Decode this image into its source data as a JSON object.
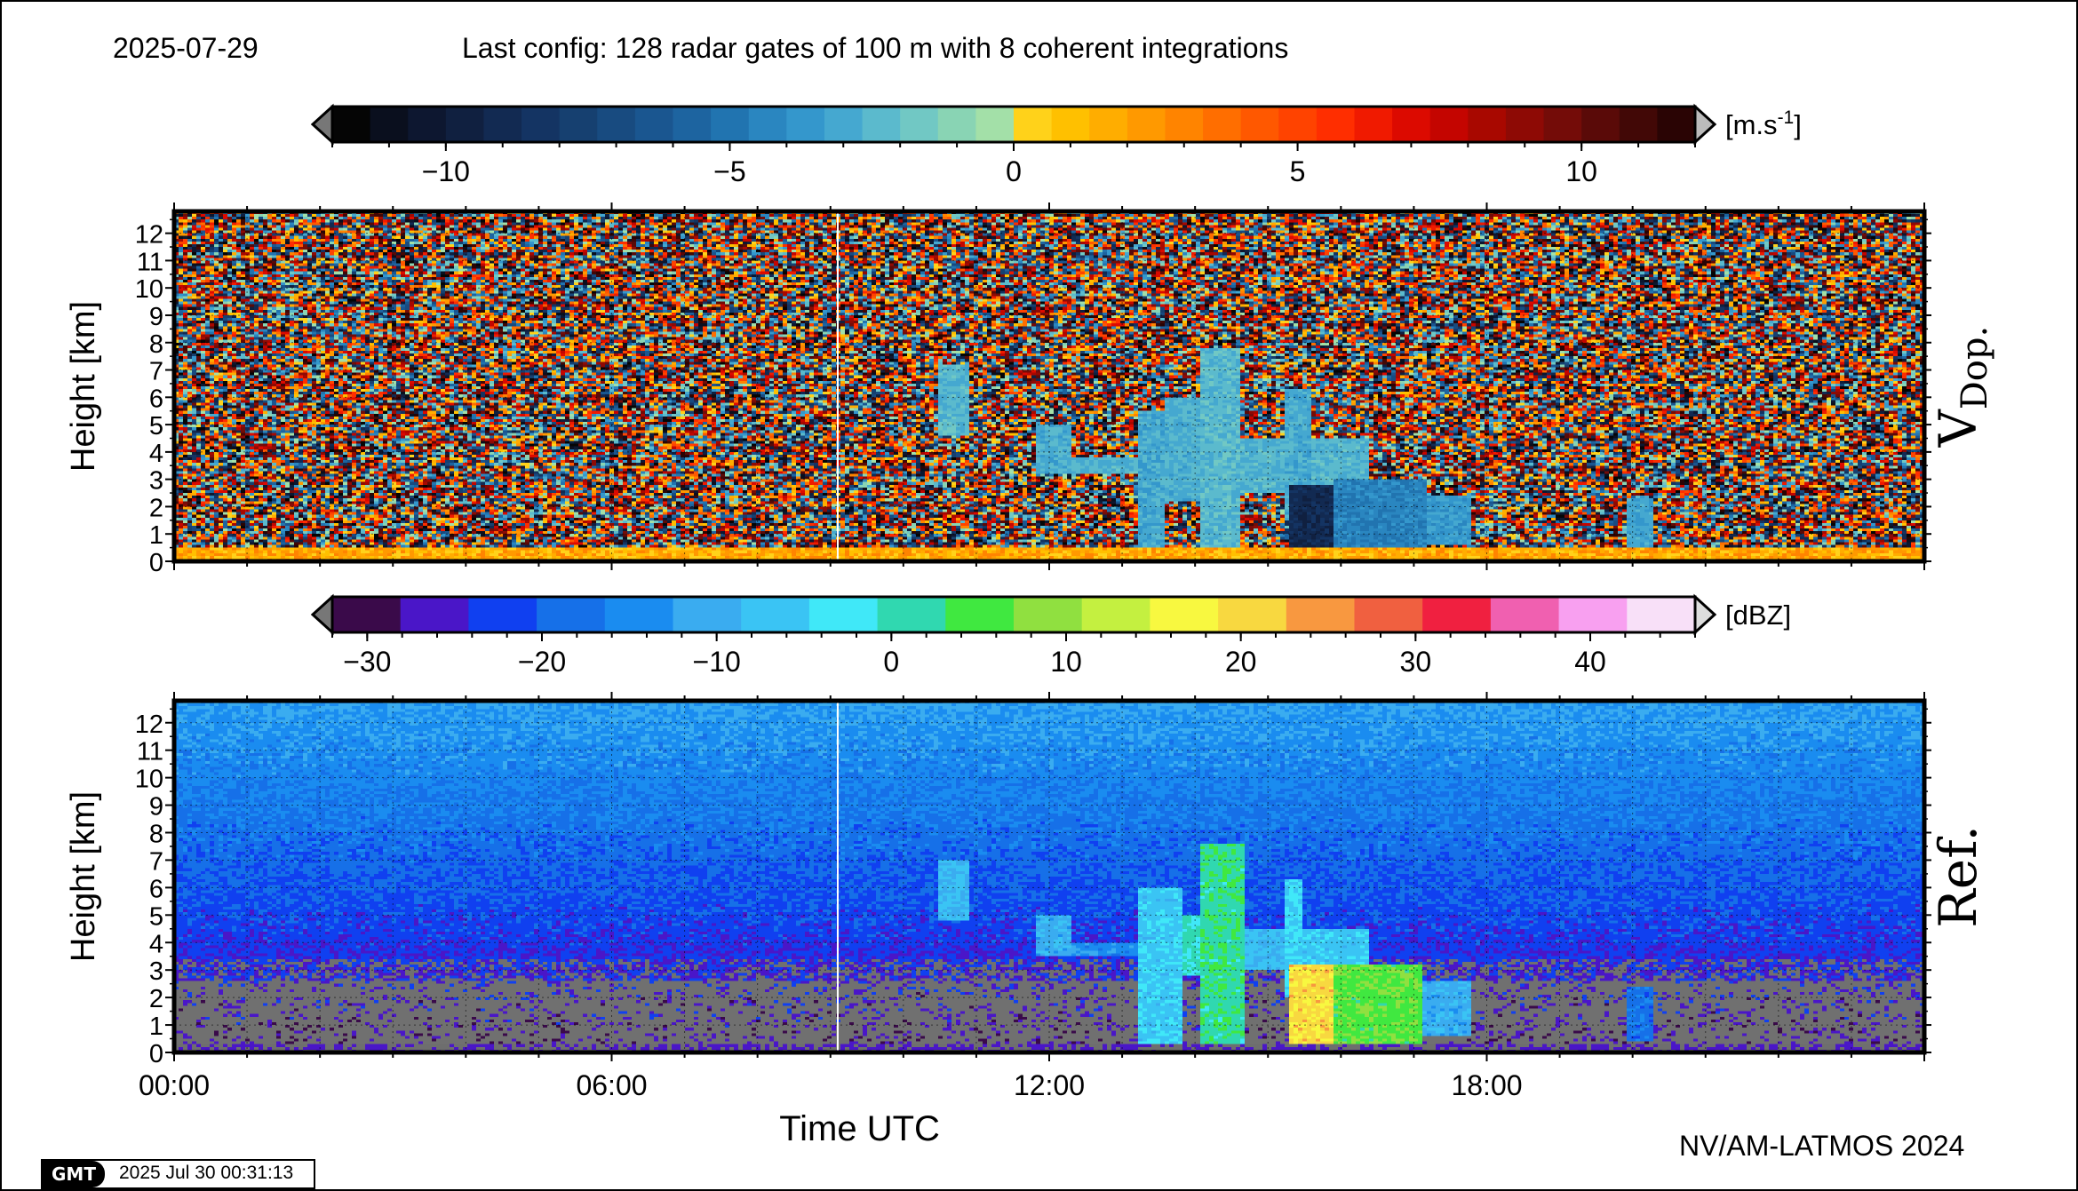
{
  "header": {
    "date": "2025-07-29",
    "config": "Last config: 128 radar gates of 100 m with 8 coherent integrations"
  },
  "footer": {
    "credit": "NV/AM-LATMOS 2024",
    "gmt_logo": "GMT",
    "timestamp": "2025 Jul 30 00:31:13"
  },
  "chart_data": [
    {
      "type": "heatmap",
      "title": "V Dop.",
      "panel_label": "V",
      "panel_label_sub": "Dop.",
      "ylabel": "Height [km]",
      "xlabel": "Time UTC",
      "ylim": [
        0,
        12.8
      ],
      "xlim_hours": [
        0,
        24
      ],
      "yticks": [
        "0",
        "1",
        "2",
        "3",
        "4",
        "5",
        "6",
        "7",
        "8",
        "9",
        "10",
        "11",
        "12"
      ],
      "colorbar": {
        "unit": "[m.s",
        "unit_sup": "-1",
        "unit_close": "]",
        "range": [
          -12,
          12
        ],
        "ticks": [
          -10,
          -5,
          0,
          5,
          10
        ],
        "tick_labels": [
          "−10",
          "−5",
          "0",
          "5",
          "10"
        ],
        "colors": [
          "#050505",
          "#0a0f1e",
          "#0d1730",
          "#102040",
          "#122a52",
          "#143463",
          "#164070",
          "#184b80",
          "#1a5690",
          "#1d64a0",
          "#2174b0",
          "#2a86c0",
          "#3497cc",
          "#45a8d0",
          "#5bbacd",
          "#71c8c4",
          "#89d4b4",
          "#a3e0a8",
          "#ffd21a",
          "#ffc000",
          "#ffad00",
          "#ff9900",
          "#ff8400",
          "#ff6e00",
          "#ff5800",
          "#ff4300",
          "#ff2e00",
          "#f01a00",
          "#dc0a00",
          "#c40500",
          "#a80800",
          "#8e0a05",
          "#740c08",
          "#5a0a08",
          "#420806",
          "#2a0404"
        ]
      },
      "echoes": [
        {
          "t_start": 10.45,
          "t_end": 10.9,
          "z_bottom": 4.6,
          "z_top": 7.2,
          "v": -2.5
        },
        {
          "t_start": 11.8,
          "t_end": 12.3,
          "z_bottom": 3.2,
          "z_top": 5.0,
          "v": -2.8
        },
        {
          "t_start": 12.3,
          "t_end": 13.3,
          "z_bottom": 3.2,
          "z_top": 3.8,
          "v": -2.6
        },
        {
          "t_start": 13.2,
          "t_end": 13.6,
          "z_bottom": 0.2,
          "z_top": 5.5,
          "v": -3.0
        },
        {
          "t_start": 13.6,
          "t_end": 14.1,
          "z_bottom": 2.2,
          "z_top": 6.0,
          "v": -2.7
        },
        {
          "t_start": 14.1,
          "t_end": 14.6,
          "z_bottom": 0.2,
          "z_top": 7.8,
          "v": -2.4
        },
        {
          "t_start": 14.6,
          "t_end": 15.2,
          "z_bottom": 2.5,
          "z_top": 4.5,
          "v": -2.6
        },
        {
          "t_start": 15.2,
          "t_end": 15.6,
          "z_bottom": 1.5,
          "z_top": 6.3,
          "v": -2.9
        },
        {
          "t_start": 15.6,
          "t_end": 16.4,
          "z_bottom": 2.8,
          "z_top": 4.5,
          "v": -2.6
        },
        {
          "t_start": 15.3,
          "t_end": 15.9,
          "z_bottom": 0.1,
          "z_top": 2.8,
          "v": -9.0
        },
        {
          "t_start": 15.9,
          "t_end": 17.2,
          "z_bottom": 0.2,
          "z_top": 3.0,
          "v": -4.5
        },
        {
          "t_start": 17.2,
          "t_end": 17.8,
          "z_bottom": 0.6,
          "z_top": 2.4,
          "v": -3.5
        },
        {
          "t_start": 19.9,
          "t_end": 20.3,
          "z_bottom": 0.3,
          "z_top": 2.3,
          "v": -3.2
        }
      ]
    },
    {
      "type": "heatmap",
      "title": "Ref.",
      "panel_label": "Ref.",
      "ylabel": "Height [km]",
      "xlabel": "Time UTC",
      "ylim": [
        0,
        12.8
      ],
      "xlim_hours": [
        0,
        24
      ],
      "yticks": [
        "0",
        "1",
        "2",
        "3",
        "4",
        "5",
        "6",
        "7",
        "8",
        "9",
        "10",
        "11",
        "12"
      ],
      "xticks": [
        "00:00",
        "06:00",
        "12:00",
        "18:00"
      ],
      "colorbar": {
        "unit": "[dBZ]",
        "range": [
          -32,
          46
        ],
        "ticks": [
          -30,
          -20,
          -10,
          0,
          10,
          20,
          30,
          40
        ],
        "tick_labels": [
          "−30",
          "−20",
          "−10",
          "0",
          "10",
          "20",
          "30",
          "40"
        ],
        "colors": [
          "#3a0a4a",
          "#4a16c8",
          "#1040f0",
          "#1670e8",
          "#1a8cf0",
          "#3aacf0",
          "#3ac4f4",
          "#40e8f8",
          "#30d8b0",
          "#40e840",
          "#90e040",
          "#c4f040",
          "#f8f840",
          "#f8d840",
          "#f89840",
          "#f06040",
          "#f02040",
          "#f060b0",
          "#f8a0f0",
          "#f8e0f8"
        ]
      },
      "echoes": [
        {
          "t_start": 10.45,
          "t_end": 10.9,
          "z_bottom": 4.8,
          "z_top": 7.0,
          "dbz": -8
        },
        {
          "t_start": 11.8,
          "t_end": 12.3,
          "z_bottom": 3.5,
          "z_top": 5.0,
          "dbz": -10
        },
        {
          "t_start": 12.3,
          "t_end": 13.2,
          "z_bottom": 3.5,
          "z_top": 4.0,
          "dbz": -14
        },
        {
          "t_start": 13.2,
          "t_end": 13.8,
          "z_bottom": 0.1,
          "z_top": 6.0,
          "dbz": -6
        },
        {
          "t_start": 13.8,
          "t_end": 14.1,
          "z_bottom": 2.8,
          "z_top": 5.0,
          "dbz": 0
        },
        {
          "t_start": 14.1,
          "t_end": 14.7,
          "z_bottom": 0.1,
          "z_top": 7.6,
          "dbz": 2
        },
        {
          "t_start": 14.7,
          "t_end": 15.2,
          "z_bottom": 3.0,
          "z_top": 4.5,
          "dbz": -8
        },
        {
          "t_start": 15.2,
          "t_end": 15.5,
          "z_bottom": 2.0,
          "z_top": 6.3,
          "dbz": -4
        },
        {
          "t_start": 15.5,
          "t_end": 16.4,
          "z_bottom": 3.0,
          "z_top": 4.5,
          "dbz": -6
        },
        {
          "t_start": 15.3,
          "t_end": 15.9,
          "z_bottom": 0.05,
          "z_top": 3.2,
          "dbz": 20
        },
        {
          "t_start": 15.9,
          "t_end": 17.1,
          "z_bottom": 0.1,
          "z_top": 3.2,
          "dbz": 6
        },
        {
          "t_start": 17.1,
          "t_end": 17.8,
          "z_bottom": 0.6,
          "z_top": 2.6,
          "dbz": -10
        },
        {
          "t_start": 19.9,
          "t_end": 20.3,
          "z_bottom": 0.4,
          "z_top": 2.4,
          "dbz": -18
        }
      ]
    }
  ]
}
